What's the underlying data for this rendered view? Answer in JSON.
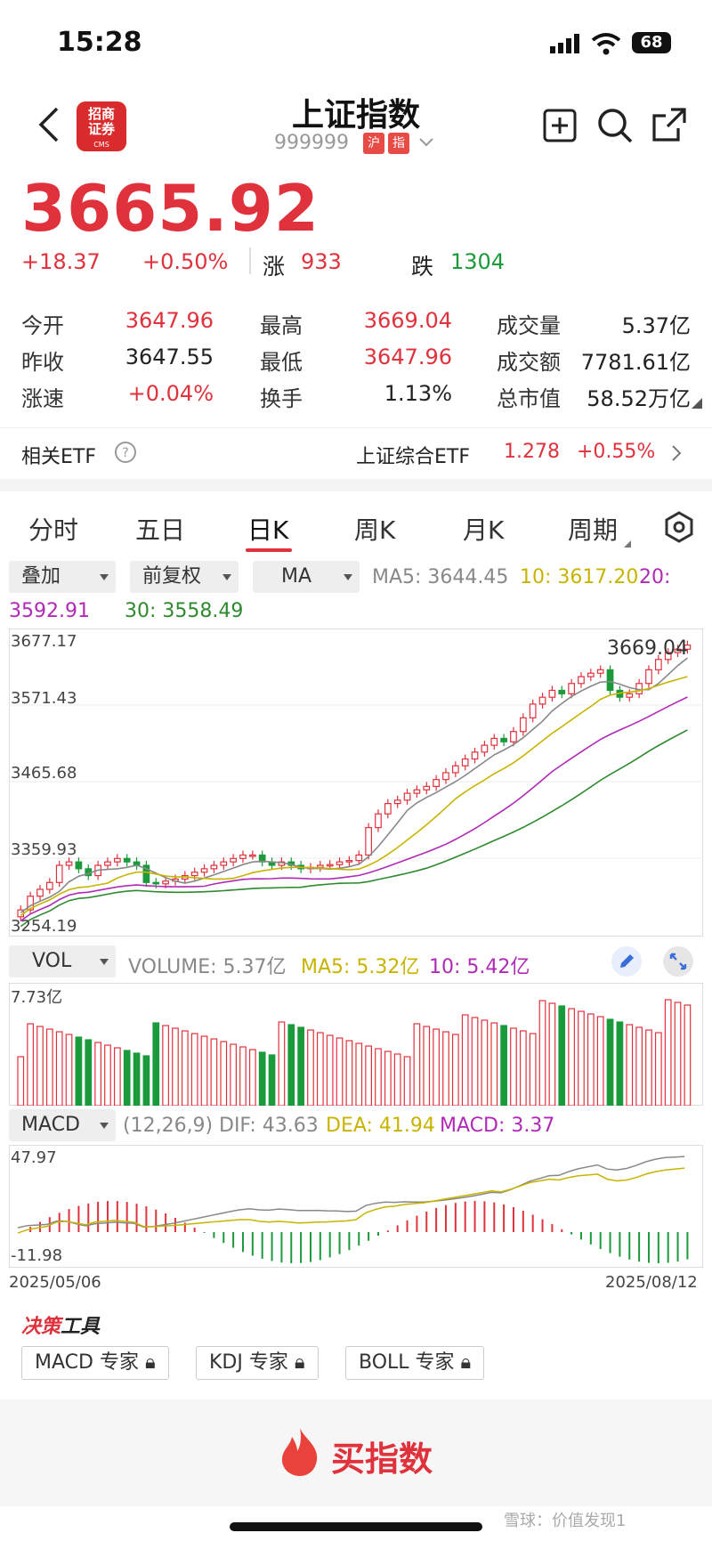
{
  "status": {
    "time": "15:28",
    "battery": "68"
  },
  "header": {
    "title": "上证指数",
    "code": "999999",
    "tag1": "沪",
    "tag2": "指",
    "logo_line1": "招商",
    "logo_line2": "证券",
    "logo_sub": "CMS"
  },
  "quote": {
    "price": "3665.92",
    "change": "+18.37",
    "pct": "+0.50%",
    "up_label": "涨",
    "up_count": "933",
    "down_label": "跌",
    "down_count": "1304"
  },
  "stats": [
    {
      "l1": "今开",
      "v1": "3647.96",
      "l2": "最高",
      "v2": "3669.04",
      "l3": "成交量",
      "v3": "5.37亿"
    },
    {
      "l1": "昨收",
      "v1": "3647.55",
      "l2": "最低",
      "v2": "3647.96",
      "l3": "成交额",
      "v3": "7781.61亿"
    },
    {
      "l1": "涨速",
      "v1": "+0.04%",
      "l2": "换手",
      "v2": "1.13%",
      "l3": "总市值",
      "v3": "58.52万亿"
    }
  ],
  "etf": {
    "label": "相关ETF",
    "name": "上证综合ETF",
    "price": "1.278",
    "pct": "+0.55%"
  },
  "tabs": [
    "分时",
    "五日",
    "日K",
    "周K",
    "月K",
    "周期"
  ],
  "controls": {
    "overlay": "叠加",
    "adjust": "前复权",
    "indicator": "MA"
  },
  "ma": {
    "ma5": "MA5: 3644.45",
    "ma10": "10: 3617.20",
    "ma20_a": "20:",
    "ma20_b": "3592.91",
    "ma30": "30: 3558.49"
  },
  "kline": {
    "y_ticks": [
      "3677.17",
      "3571.43",
      "3465.68",
      "3359.93",
      "3254.19"
    ],
    "high_label": "3669.04"
  },
  "vol": {
    "selector": "VOL",
    "volume": "VOLUME: 5.37亿",
    "ma5": "MA5: 5.32亿",
    "ma10": "10: 5.42亿",
    "ymax": "7.73亿"
  },
  "macd": {
    "selector": "MACD",
    "params": "(12,26,9)",
    "dif": "DIF: 43.63",
    "dea": "DEA: 41.94",
    "macd": "MACD: 3.37",
    "ymax": "47.97",
    "ymin": "-11.98",
    "date_start": "2025/05/06",
    "date_end": "2025/08/12"
  },
  "tools": {
    "title_a": "决策",
    "title_b": "工具",
    "b1": "MACD 专家",
    "b2": "KDJ 专家",
    "b3": "BOLL 专家"
  },
  "buy": {
    "label": "买指数"
  },
  "watermark": "雪球：价值发现1",
  "colors": {
    "up": "#e0323c",
    "down": "#1a9a3a",
    "ma5": "#888888",
    "ma10": "#c8b400",
    "ma20": "#b02ab5",
    "ma30": "#2f8a2f"
  },
  "chart_data": {
    "type": "candlestick",
    "y_ticks": [
      3677.17,
      3571.43,
      3465.68,
      3359.93,
      3254.19
    ],
    "ylim": [
      3254.19,
      3677.17
    ],
    "x_range": [
      "2025/05/06",
      "2025/08/12"
    ],
    "close_approx": [
      3280,
      3300,
      3310,
      3320,
      3345,
      3350,
      3340,
      3330,
      3345,
      3350,
      3355,
      3350,
      3345,
      3320,
      3318,
      3322,
      3325,
      3330,
      3335,
      3340,
      3345,
      3350,
      3355,
      3360,
      3360,
      3350,
      3345,
      3350,
      3345,
      3340,
      3342,
      3345,
      3346,
      3350,
      3352,
      3360,
      3400,
      3420,
      3435,
      3440,
      3450,
      3455,
      3460,
      3470,
      3480,
      3490,
      3500,
      3510,
      3520,
      3530,
      3525,
      3540,
      3560,
      3580,
      3590,
      3600,
      3595,
      3610,
      3620,
      3625,
      3630,
      3600,
      3590,
      3595,
      3610,
      3630,
      3645,
      3655,
      3660,
      3666
    ]
  }
}
